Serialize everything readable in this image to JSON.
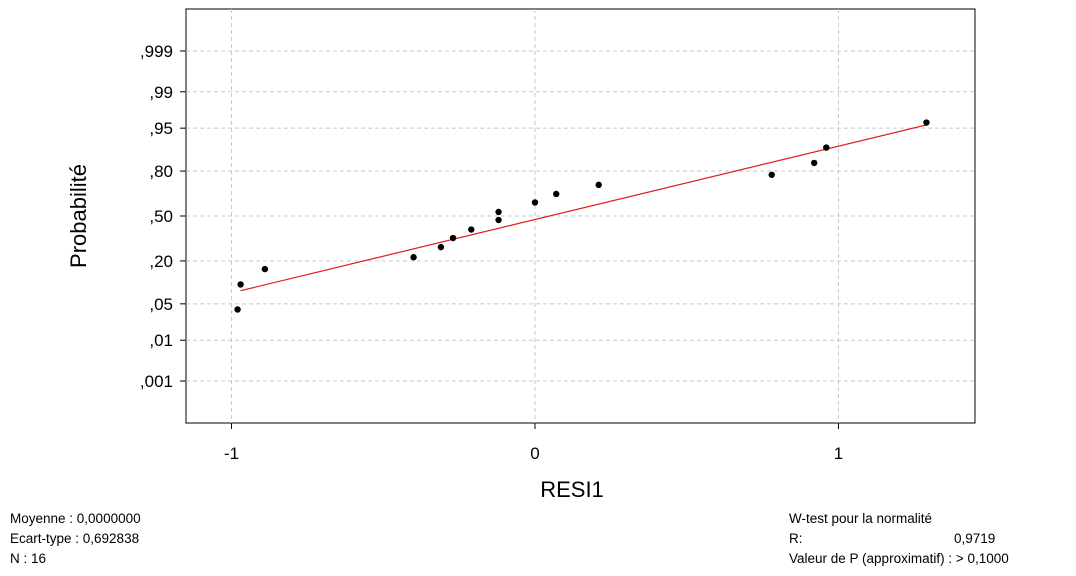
{
  "chart_data": {
    "type": "scatter",
    "xlabel": "RESI1",
    "ylabel": "Probabilité",
    "xlim": [
      -1.15,
      1.45
    ],
    "x_ticks": [
      {
        "value": -1,
        "label": "-1"
      },
      {
        "value": 0,
        "label": "0"
      },
      {
        "value": 1,
        "label": "1"
      }
    ],
    "y_ticks": [
      {
        "value": 0.999,
        "label": ",999"
      },
      {
        "value": 0.99,
        "label": ",99"
      },
      {
        "value": 0.95,
        "label": ",95"
      },
      {
        "value": 0.8,
        "label": ",80"
      },
      {
        "value": 0.5,
        "label": ",50"
      },
      {
        "value": 0.2,
        "label": ",20"
      },
      {
        "value": 0.05,
        "label": ",05"
      },
      {
        "value": 0.01,
        "label": ",01"
      },
      {
        "value": 0.001,
        "label": ",001"
      }
    ],
    "y_scale": "normal probability",
    "grid": true,
    "points": [
      {
        "x": -0.98,
        "p": 0.04
      },
      {
        "x": -0.97,
        "p": 0.1
      },
      {
        "x": -0.89,
        "p": 0.16
      },
      {
        "x": -0.4,
        "p": 0.22
      },
      {
        "x": -0.31,
        "p": 0.28
      },
      {
        "x": -0.27,
        "p": 0.34
      },
      {
        "x": -0.21,
        "p": 0.4
      },
      {
        "x": -0.12,
        "p": 0.47
      },
      {
        "x": -0.12,
        "p": 0.53
      },
      {
        "x": 0.0,
        "p": 0.6
      },
      {
        "x": 0.07,
        "p": 0.66
      },
      {
        "x": 0.21,
        "p": 0.72
      },
      {
        "x": 0.78,
        "p": 0.78
      },
      {
        "x": 0.92,
        "p": 0.84
      },
      {
        "x": 0.96,
        "p": 0.9
      },
      {
        "x": 1.29,
        "p": 0.96
      }
    ],
    "fit_line": {
      "x1": -0.97,
      "p1": 0.081,
      "x2": 1.29,
      "p2": 0.956,
      "color": "#e31a1c"
    },
    "marker_color": "#000000",
    "grid_color": "#c8c8c8"
  },
  "stats_left": {
    "mean": "Moyenne : 0,0000000",
    "stdev": "Ecart-type : 0,692838",
    "n": "N : 16"
  },
  "stats_right": {
    "title": "W-test pour la normalité",
    "r_label": "R:",
    "r_value": "0,9719",
    "p_value": "Valeur de P (approximatif) : > 0,1000"
  }
}
